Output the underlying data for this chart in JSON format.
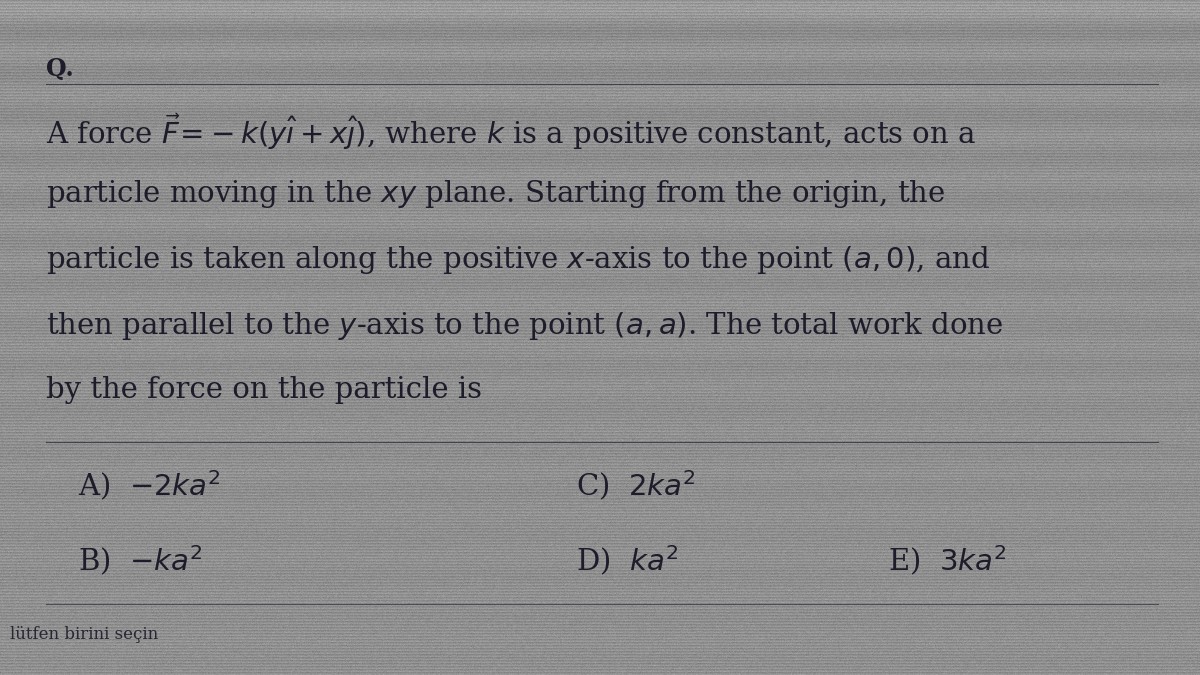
{
  "bg_color_top": "#4a5060",
  "bg_color_main": "#9a9a9a",
  "bg_color_bottom": "#7a7a7a",
  "text_color": "#1c1c2a",
  "q_label": "Q.",
  "question_line1": "A force $\\vec{F}\\!=\\!-k(y\\hat{\\imath}+x\\hat{\\jmath})$, where $k$ is a positive constant, acts on a",
  "question_line2": "particle moving in the $xy$ plane. Starting from the origin, the",
  "question_line3": "particle is taken along the positive $x$-axis to the point $(a,0)$, and",
  "question_line4": "then parallel to the $y$-axis to the point $(a, a)$. The total work done",
  "question_line5": "by the force on the particle is",
  "optA": "A)  $-2ka^2$",
  "optB": "B)  $-ka^2$",
  "optC": "C)  $2ka^2$",
  "optD": "D)  $ka^2$",
  "optE": "E)  $3ka^2$",
  "footer": "lütfen birini seçin",
  "fontsize_q": 17,
  "fontsize_question": 21,
  "fontsize_options": 21,
  "fontsize_footer": 12
}
